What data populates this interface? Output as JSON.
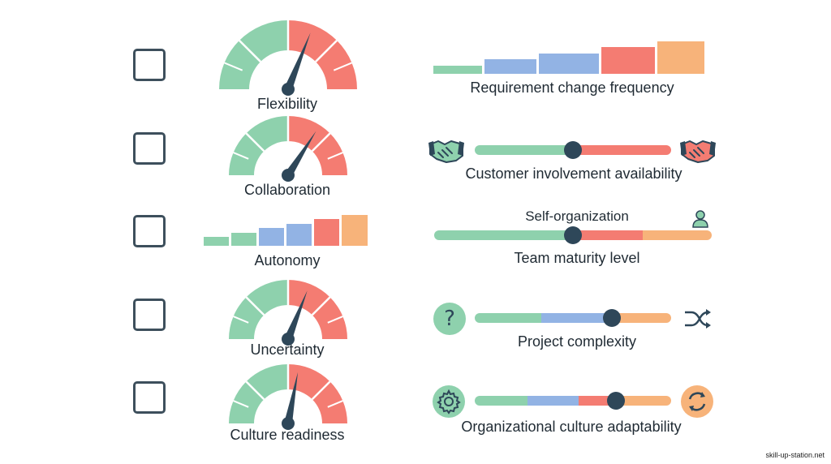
{
  "colors": {
    "green": "#8ed1ad",
    "red": "#f47c72",
    "blue": "#92b3e4",
    "orange": "#f7b37a",
    "dark": "#2e4759",
    "outline": "#3d4f5c"
  },
  "left_items": [
    {
      "label": "Flexibility",
      "type": "gauge",
      "value": 0.62
    },
    {
      "label": "Collaboration",
      "type": "gauge",
      "value": 0.68
    },
    {
      "label": "Autonomy",
      "type": "bars"
    },
    {
      "label": "Uncertainty",
      "type": "gauge",
      "value": 0.62
    },
    {
      "label": "Culture readiness",
      "type": "gauge",
      "value": 0.56
    }
  ],
  "right_items": [
    {
      "label": "Requirement change frequency",
      "type": "bars"
    },
    {
      "label": "Customer involvement availability",
      "type": "slider",
      "value": 0.5,
      "left_icon": "handshake-icon",
      "right_icon": "handshake-icon"
    },
    {
      "label": "Team maturity level",
      "top_label": "Self-organization",
      "type": "slider",
      "value": 0.5,
      "right_icon": "person-icon"
    },
    {
      "label": "Project complexity",
      "type": "slider",
      "value": 0.7,
      "left_icon": "question-icon",
      "right_icon": "shuffle-icon"
    },
    {
      "label": "Organizational culture adaptability",
      "type": "slider",
      "value": 0.72,
      "left_icon": "gear-icon",
      "right_icon": "refresh-icon"
    }
  ],
  "watermark": "skill-up-station.net"
}
